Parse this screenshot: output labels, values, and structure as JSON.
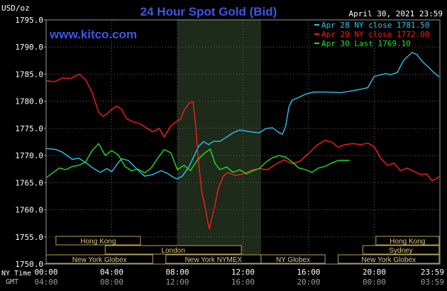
{
  "chart_data": {
    "type": "line",
    "title": "24 Hour Spot Gold (Bid)",
    "watermark": "www.kitco.com",
    "date_label": "April 30, 2021 23:59",
    "ylabel": "USD/oz",
    "ylim": [
      1750,
      1795
    ],
    "y_ticks": [
      "1795.0",
      "1790.0",
      "1785.0",
      "1780.0",
      "1775.0",
      "1770.0",
      "1765.0",
      "1760.0",
      "1755.0",
      "1750.0"
    ],
    "grid": true,
    "legend_position": "top-right",
    "x_row1_label": "NY Time",
    "x_row2_label": "GMT",
    "x_ticks_ny": [
      "00:00",
      "04:00",
      "08:00",
      "12:00",
      "16:00",
      "20:00",
      "23:59"
    ],
    "x_ticks_gmt": [
      "04:00",
      "08:00",
      "12:00",
      "16:00",
      "20:00",
      "00:00",
      "03:59"
    ],
    "highlight_hours": [
      8.0,
      13.1
    ],
    "sessions": [
      {
        "name": "Hong Kong",
        "start": 0.6,
        "end": 5.75,
        "row": 0
      },
      {
        "name": "Hong Kong",
        "start": 20.1,
        "end": 23.95,
        "row": 0
      },
      {
        "name": "London",
        "start": 3.6,
        "end": 11.9,
        "row": 1
      },
      {
        "name": "Sydney",
        "start": 19.3,
        "end": 23.95,
        "row": 1
      },
      {
        "name": "New York Globex",
        "start": 0.0,
        "end": 6.5,
        "row": 2
      },
      {
        "name": "New York NYMEX",
        "start": 7.3,
        "end": 13.1,
        "row": 2
      },
      {
        "name": "NY Globex",
        "start": 13.1,
        "end": 17.0,
        "row": 2
      },
      {
        "name": "New York Globex",
        "start": 17.8,
        "end": 23.95,
        "row": 2
      }
    ],
    "series": [
      {
        "name": "Apr 28 NY close 1781.50",
        "color": "#2fc4f0",
        "points": [
          [
            0,
            1771.3
          ],
          [
            0.6,
            1771.1
          ],
          [
            1,
            1770.6
          ],
          [
            1.6,
            1769.3
          ],
          [
            2,
            1769.5
          ],
          [
            2.5,
            1768.5
          ],
          [
            2.9,
            1767.6
          ],
          [
            3.3,
            1766.9
          ],
          [
            3.7,
            1767.6
          ],
          [
            4,
            1767.0
          ],
          [
            4.3,
            1768.3
          ],
          [
            4.6,
            1769.4
          ],
          [
            5,
            1769.1
          ],
          [
            5.5,
            1767.6
          ],
          [
            6,
            1766.2
          ],
          [
            6.5,
            1766.5
          ],
          [
            7,
            1767.2
          ],
          [
            7.4,
            1766.7
          ],
          [
            7.8,
            1765.9
          ],
          [
            8,
            1765.7
          ],
          [
            8.3,
            1766.2
          ],
          [
            8.7,
            1767.9
          ],
          [
            9,
            1769.8
          ],
          [
            9.3,
            1771.7
          ],
          [
            9.6,
            1772.6
          ],
          [
            9.9,
            1772.0
          ],
          [
            10.2,
            1772.6
          ],
          [
            10.6,
            1772.6
          ],
          [
            11,
            1773.4
          ],
          [
            11.4,
            1774.2
          ],
          [
            11.8,
            1774.7
          ],
          [
            12.2,
            1774.5
          ],
          [
            12.6,
            1774.3
          ],
          [
            13,
            1774.2
          ],
          [
            13.4,
            1775.0
          ],
          [
            13.8,
            1775.1
          ],
          [
            14.1,
            1774.4
          ],
          [
            14.4,
            1773.9
          ],
          [
            14.6,
            1775.4
          ],
          [
            14.8,
            1779.0
          ],
          [
            15,
            1780.2
          ],
          [
            15.4,
            1780.7
          ],
          [
            15.8,
            1781.3
          ],
          [
            16.3,
            1781.7
          ],
          [
            17,
            1781.7
          ],
          [
            18,
            1781.6
          ],
          [
            19,
            1782.1
          ],
          [
            19.6,
            1782.5
          ],
          [
            20,
            1784.6
          ],
          [
            20.3,
            1784.8
          ],
          [
            20.7,
            1785.1
          ],
          [
            21,
            1784.9
          ],
          [
            21.4,
            1785.3
          ],
          [
            21.8,
            1787.6
          ],
          [
            22.3,
            1789.0
          ],
          [
            22.6,
            1788.6
          ],
          [
            22.9,
            1787.4
          ],
          [
            23.3,
            1786.3
          ],
          [
            23.7,
            1785.1
          ],
          [
            23.95,
            1784.5
          ]
        ]
      },
      {
        "name": "Apr 29 NY close 1772.00",
        "color": "#ff1b1b",
        "points": [
          [
            0,
            1783.8
          ],
          [
            0.5,
            1783.6
          ],
          [
            1,
            1784.3
          ],
          [
            1.5,
            1784.2
          ],
          [
            2,
            1785.0
          ],
          [
            2.4,
            1784.0
          ],
          [
            2.8,
            1781.6
          ],
          [
            3.2,
            1778.0
          ],
          [
            3.5,
            1777.2
          ],
          [
            4,
            1778.5
          ],
          [
            4.3,
            1779.1
          ],
          [
            4.6,
            1778.5
          ],
          [
            4.9,
            1776.8
          ],
          [
            5.3,
            1776.2
          ],
          [
            5.7,
            1775.9
          ],
          [
            6.1,
            1775.1
          ],
          [
            6.5,
            1774.4
          ],
          [
            6.9,
            1775.0
          ],
          [
            7.2,
            1773.4
          ],
          [
            7.6,
            1775.5
          ],
          [
            8,
            1776.4
          ],
          [
            8.2,
            1776.7
          ],
          [
            8.4,
            1778.3
          ],
          [
            8.7,
            1779.6
          ],
          [
            8.95,
            1779.9
          ],
          [
            9.1,
            1776.0
          ],
          [
            9.3,
            1768.5
          ],
          [
            9.5,
            1763.0
          ],
          [
            9.7,
            1760.5
          ],
          [
            9.85,
            1757.8
          ],
          [
            9.95,
            1756.5
          ],
          [
            10.1,
            1758.5
          ],
          [
            10.3,
            1761.0
          ],
          [
            10.5,
            1764.0
          ],
          [
            10.8,
            1766.2
          ],
          [
            11.1,
            1766.9
          ],
          [
            11.5,
            1766.3
          ],
          [
            12,
            1766.6
          ],
          [
            12.5,
            1767.3
          ],
          [
            13,
            1767.6
          ],
          [
            13.5,
            1767.4
          ],
          [
            14,
            1768.4
          ],
          [
            14.5,
            1769.2
          ],
          [
            15,
            1768.5
          ],
          [
            15.5,
            1769.0
          ],
          [
            16,
            1770.4
          ],
          [
            16.5,
            1771.9
          ],
          [
            17,
            1772.8
          ],
          [
            17.4,
            1772.5
          ],
          [
            17.8,
            1771.5
          ],
          [
            18.2,
            1772.0
          ],
          [
            18.7,
            1772.2
          ],
          [
            19.2,
            1772.0
          ],
          [
            19.6,
            1772.3
          ],
          [
            20,
            1771.6
          ],
          [
            20.4,
            1769.5
          ],
          [
            20.8,
            1768.2
          ],
          [
            21.2,
            1768.6
          ],
          [
            21.6,
            1767.2
          ],
          [
            22,
            1767.7
          ],
          [
            22.4,
            1767.1
          ],
          [
            22.8,
            1766.5
          ],
          [
            23.2,
            1766.6
          ],
          [
            23.5,
            1765.4
          ],
          [
            23.8,
            1765.7
          ],
          [
            23.95,
            1766.2
          ]
        ]
      },
      {
        "name": "Apr 30 Last 1769.10",
        "color": "#1fe01f",
        "points": [
          [
            0,
            1765.9
          ],
          [
            0.4,
            1766.8
          ],
          [
            0.8,
            1767.7
          ],
          [
            1.2,
            1767.4
          ],
          [
            1.6,
            1768.0
          ],
          [
            2,
            1768.2
          ],
          [
            2.4,
            1768.8
          ],
          [
            2.8,
            1770.9
          ],
          [
            3.2,
            1772.2
          ],
          [
            3.6,
            1770.0
          ],
          [
            4,
            1770.9
          ],
          [
            4.4,
            1770.1
          ],
          [
            4.8,
            1768.0
          ],
          [
            5.2,
            1767.2
          ],
          [
            5.6,
            1767.5
          ],
          [
            6,
            1766.8
          ],
          [
            6.4,
            1767.7
          ],
          [
            6.8,
            1769.5
          ],
          [
            7.2,
            1771.1
          ],
          [
            7.6,
            1770.5
          ],
          [
            8,
            1767.4
          ],
          [
            8.4,
            1768.2
          ],
          [
            8.8,
            1767.2
          ],
          [
            9.2,
            1769.1
          ],
          [
            9.6,
            1770.3
          ],
          [
            10,
            1771.2
          ],
          [
            10.3,
            1768.5
          ],
          [
            10.6,
            1767.4
          ],
          [
            11,
            1767.9
          ],
          [
            11.4,
            1766.9
          ],
          [
            11.8,
            1767.4
          ],
          [
            12.2,
            1766.6
          ],
          [
            12.6,
            1767.2
          ],
          [
            13,
            1767.6
          ],
          [
            13.4,
            1768.8
          ],
          [
            13.8,
            1769.6
          ],
          [
            14.2,
            1770.0
          ],
          [
            14.6,
            1769.7
          ],
          [
            15,
            1768.8
          ],
          [
            15.4,
            1767.7
          ],
          [
            15.8,
            1767.4
          ],
          [
            16.2,
            1766.9
          ],
          [
            16.6,
            1767.7
          ],
          [
            17,
            1768.0
          ],
          [
            17.4,
            1768.6
          ],
          [
            17.8,
            1769.1
          ],
          [
            18.5,
            1769.1
          ]
        ]
      }
    ]
  }
}
